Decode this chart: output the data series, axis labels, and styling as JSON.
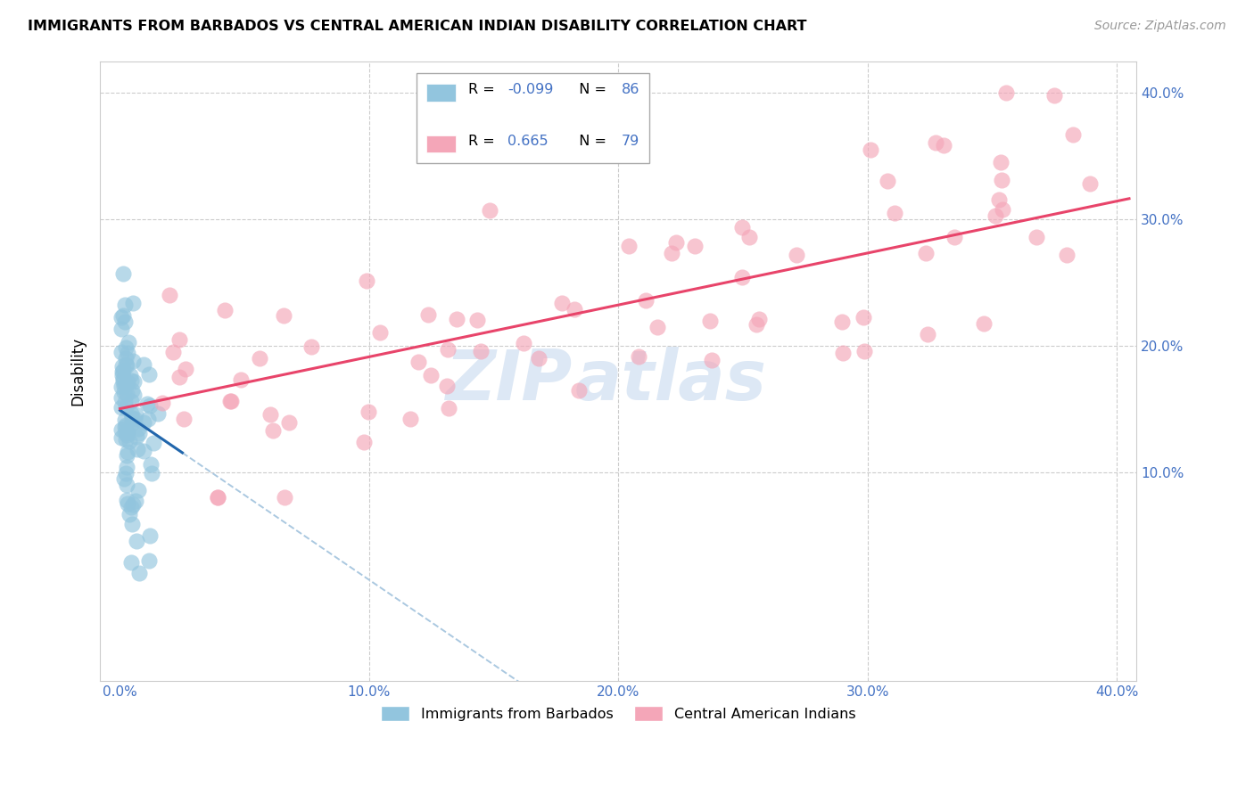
{
  "title": "IMMIGRANTS FROM BARBADOS VS CENTRAL AMERICAN INDIAN DISABILITY CORRELATION CHART",
  "source": "Source: ZipAtlas.com",
  "ylabel": "Disability",
  "color_blue": "#92c5de",
  "color_pink": "#f4a6b8",
  "color_trendline_blue": "#2166ac",
  "color_trendline_pink": "#e8446a",
  "color_trendline_blue_dashed": "#aac8e0",
  "color_grid": "#cccccc",
  "color_tick": "#4472c4",
  "watermark_zip": "ZIP",
  "watermark_atlas": "atlas",
  "watermark_color": "#dde8f5",
  "legend_r1_label": "R = ",
  "legend_r1_val": "-0.099",
  "legend_n1_label": "N = ",
  "legend_n1_val": "86",
  "legend_r2_label": "R =  ",
  "legend_r2_val": "0.665",
  "legend_n2_label": "N = ",
  "legend_n2_val": "79",
  "bottom_legend1": "Immigrants from Barbados",
  "bottom_legend2": "Central American Indians"
}
